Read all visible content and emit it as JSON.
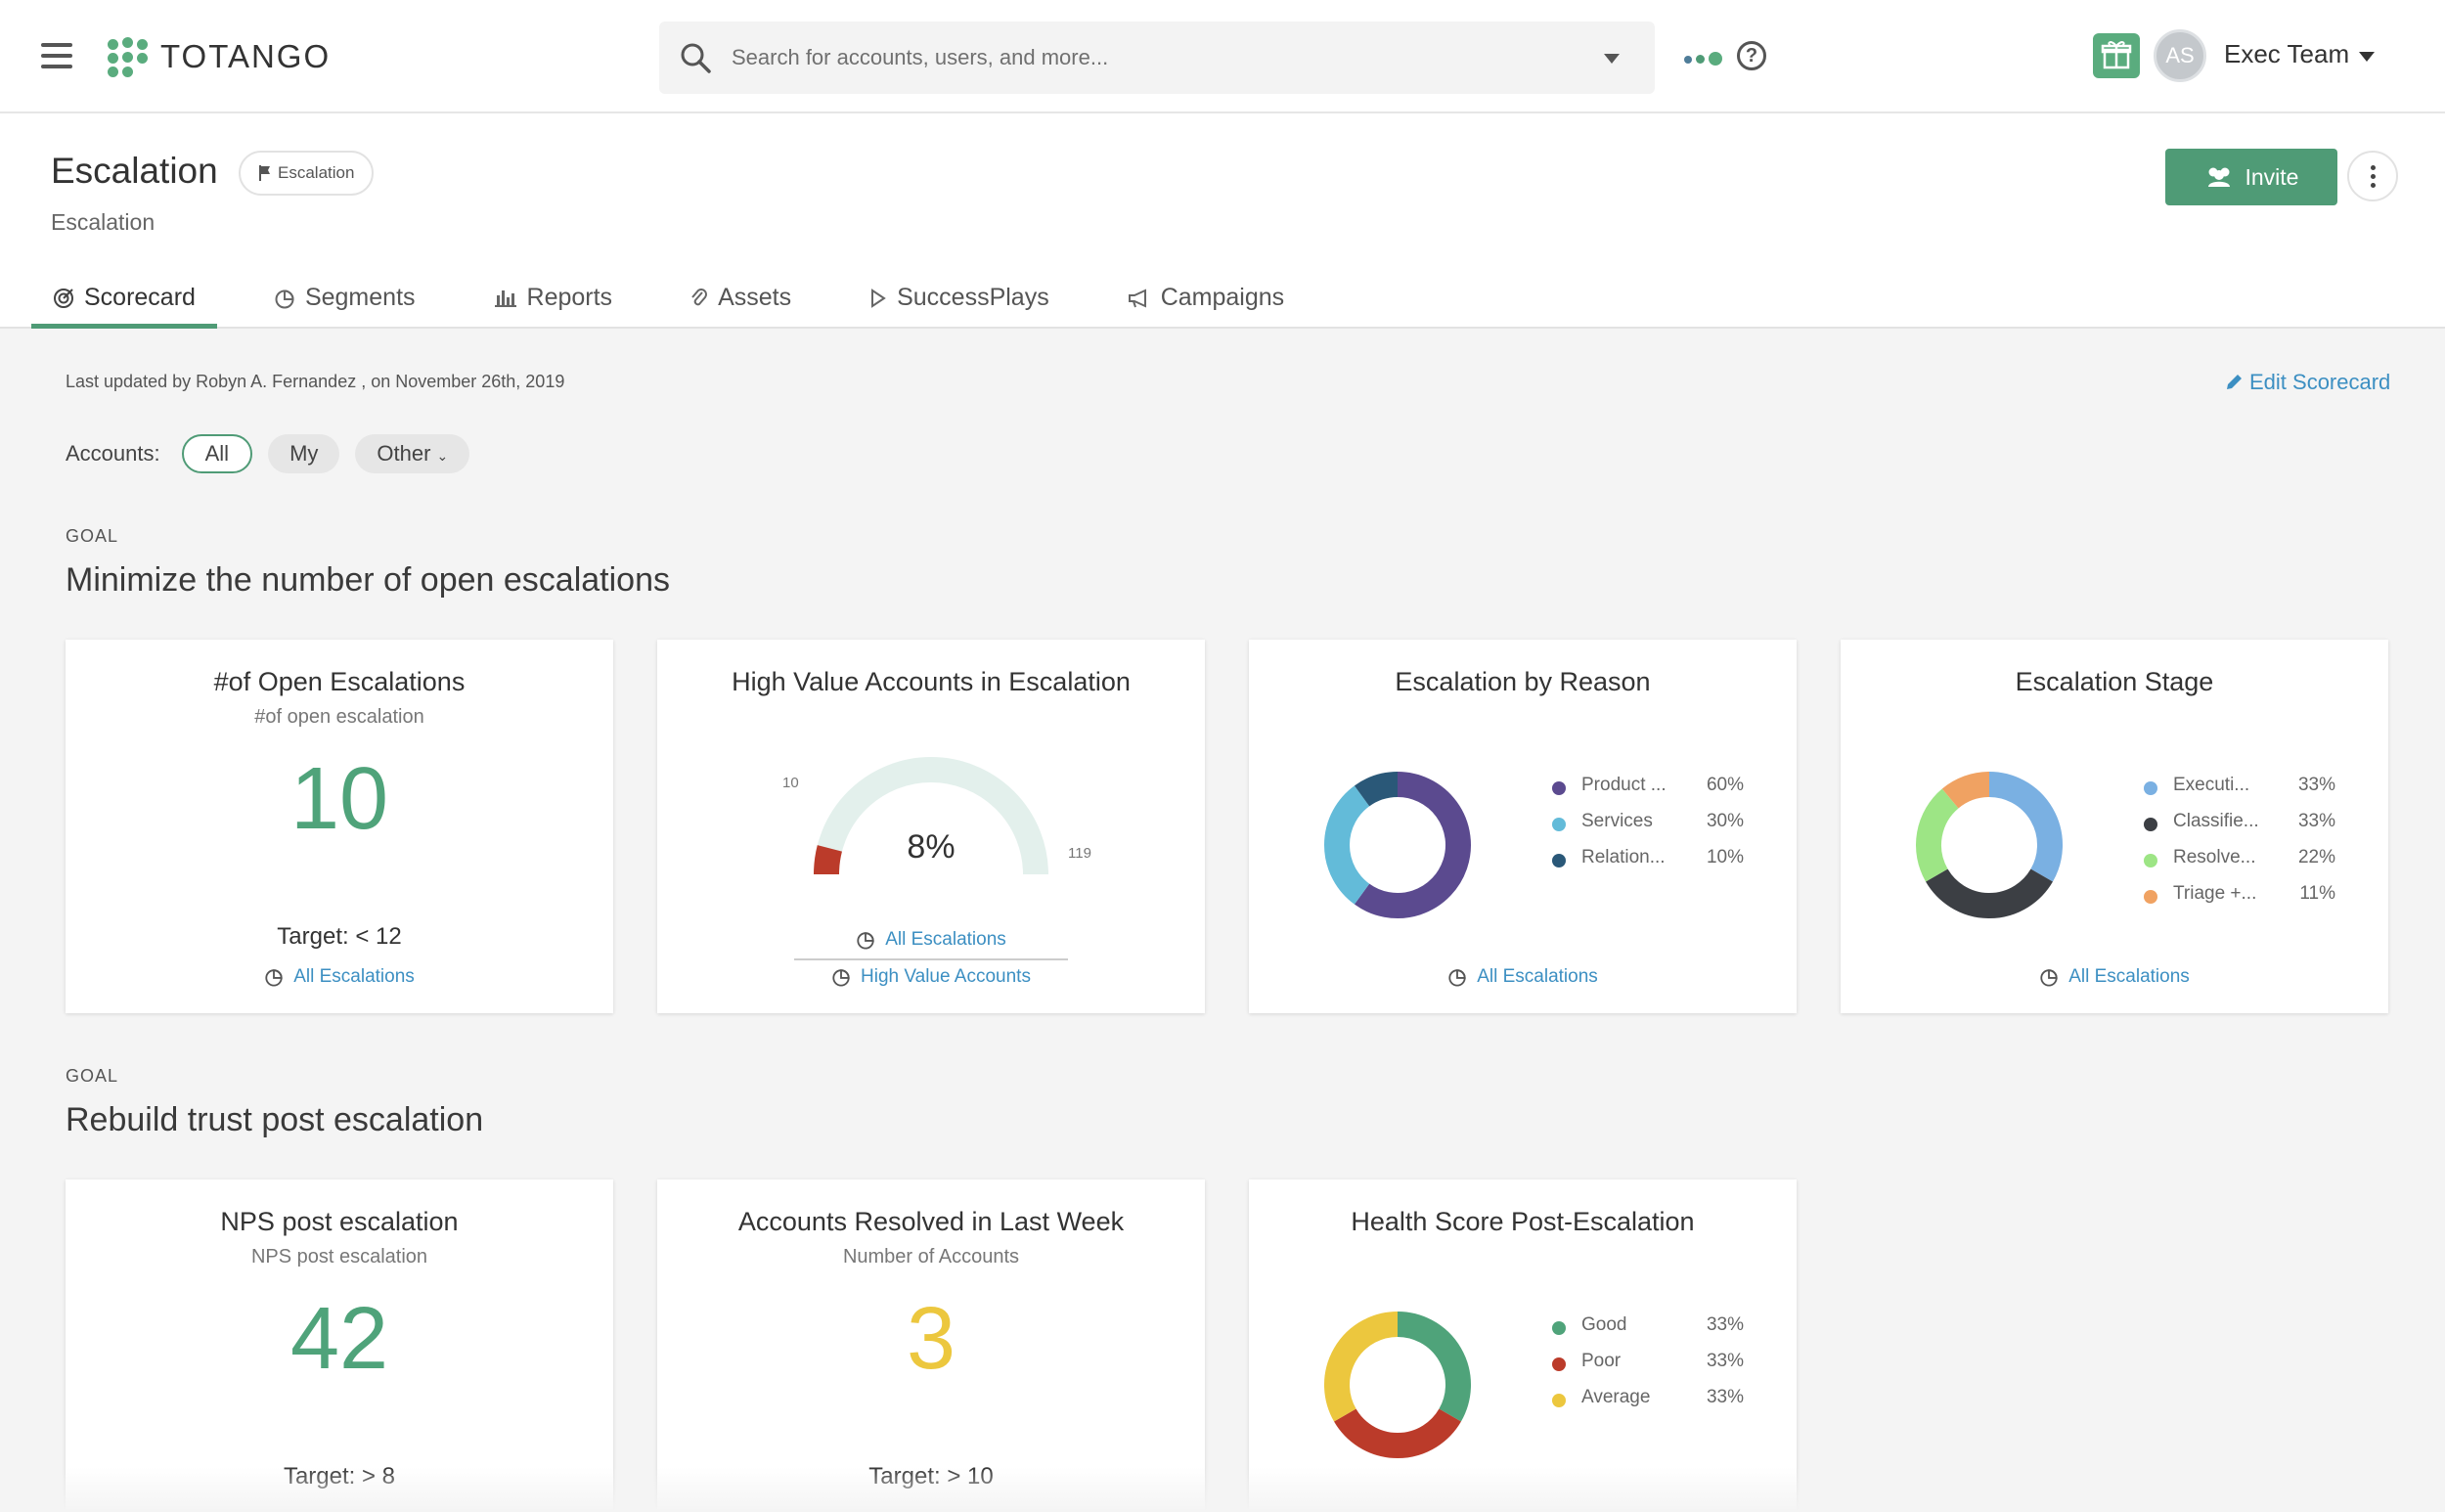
{
  "header": {
    "logo_text": "TOTANGO",
    "search_placeholder": "Search for accounts, users, and more...",
    "avatar_initials": "AS",
    "user_name": "Exec Team"
  },
  "page": {
    "title": "Escalation",
    "badge": "Escalation",
    "subtitle": "Escalation",
    "invite_label": "Invite",
    "tabs": [
      {
        "label": "Scorecard",
        "icon": "target-icon"
      },
      {
        "label": "Segments",
        "icon": "pie-icon"
      },
      {
        "label": "Reports",
        "icon": "bar-chart-icon"
      },
      {
        "label": "Assets",
        "icon": "paperclip-icon"
      },
      {
        "label": "SuccessPlays",
        "icon": "play-icon"
      },
      {
        "label": "Campaigns",
        "icon": "megaphone-icon"
      }
    ]
  },
  "content": {
    "last_updated": "Last updated by Robyn A. Fernandez , on November 26th, 2019",
    "edit_label": "Edit Scorecard",
    "accounts_label": "Accounts:",
    "filters": [
      "All",
      "My",
      "Other"
    ],
    "goals": [
      {
        "tag": "GOAL",
        "title": "Minimize the number of open escalations"
      },
      {
        "tag": "GOAL",
        "title": "Rebuild trust post escalation"
      }
    ]
  },
  "cards": {
    "open_escalations": {
      "title": "#of Open Escalations",
      "sub": "#of open escalation",
      "value": "10",
      "target": "Target: < 12",
      "link": "All Escalations"
    },
    "high_value": {
      "title": "High Value Accounts in Escalation",
      "value": "8%",
      "min": "10",
      "max": "119",
      "fraction": 0.08,
      "link1": "All Escalations",
      "link2": "High Value Accounts"
    },
    "by_reason": {
      "title": "Escalation by Reason",
      "link": "All Escalations"
    },
    "stage": {
      "title": "Escalation Stage",
      "link": "All Escalations"
    },
    "nps": {
      "title": "NPS post escalation",
      "sub": "NPS post escalation",
      "value": "42",
      "target": "Target: > 8"
    },
    "resolved": {
      "title": "Accounts Resolved in Last Week",
      "sub": "Number of Accounts",
      "value": "3",
      "target": "Target: > 10"
    },
    "health": {
      "title": "Health Score Post-Escalation"
    }
  },
  "chart_data": [
    {
      "type": "pie",
      "categories": [
        "Product ...",
        "Services",
        "Relation..."
      ],
      "values": [
        60,
        30,
        10
      ],
      "labels": [
        "60%",
        "30%",
        "10%"
      ],
      "colors": [
        "#5b4a8f",
        "#63bbd9",
        "#2a5878"
      ]
    },
    {
      "type": "pie",
      "categories": [
        "Executi...",
        "Classifie...",
        "Resolve...",
        "Triage +..."
      ],
      "values": [
        33,
        33,
        22,
        11
      ],
      "labels": [
        "33%",
        "33%",
        "22%",
        "11%"
      ],
      "colors": [
        "#7ab0e2",
        "#3c3f44",
        "#9de585",
        "#f0a262"
      ]
    },
    {
      "type": "pie",
      "categories": [
        "Good",
        "Poor",
        "Average"
      ],
      "values": [
        33,
        33,
        33
      ],
      "labels": [
        "33%",
        "33%",
        "33%"
      ],
      "colors": [
        "#4fa37a",
        "#bb3b2a",
        "#ecc73e"
      ]
    }
  ]
}
